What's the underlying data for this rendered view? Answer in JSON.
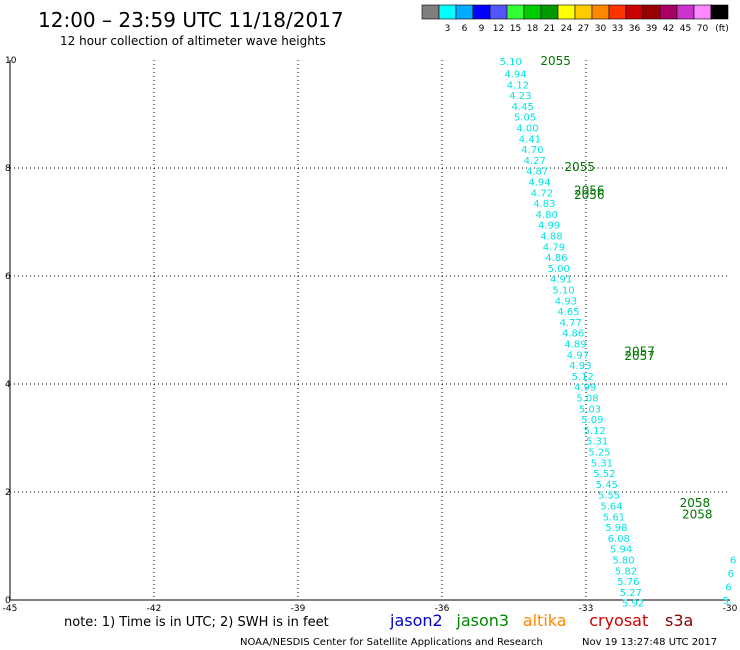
{
  "header": {
    "title": "12:00 – 23:59 UTC 11/18/2017",
    "subtitle": "12 hour collection of altimeter wave heights"
  },
  "legend": {
    "colors": [
      "#7f7f7f",
      "#00ffff",
      "#00aaff",
      "#0000ff",
      "#5555ff",
      "#33ff33",
      "#00cc00",
      "#009900",
      "#ffff00",
      "#ffcc00",
      "#ff8800",
      "#ff3300",
      "#cc0000",
      "#990000",
      "#aa0066",
      "#cc33cc",
      "#ff88ff",
      "#000000"
    ],
    "labels": [
      "3",
      "6",
      "9",
      "12",
      "15",
      "18",
      "21",
      "24",
      "27",
      "30",
      "33",
      "36",
      "39",
      "42",
      "45",
      "70"
    ],
    "unit": "(ft)"
  },
  "footer": {
    "note": "note: 1) Time is in UTC; 2) SWH is in feet",
    "satellites": [
      {
        "name": "jason2",
        "color": "#0000cc"
      },
      {
        "name": "jason3",
        "color": "#008800"
      },
      {
        "name": "altika",
        "color": "#ff8800"
      },
      {
        "name": "cryosat",
        "color": "#cc0000"
      },
      {
        "name": "s3a",
        "color": "#880000"
      }
    ],
    "credit": "NOAA/NESDIS Center for Satellite Applications and Research",
    "timestamp": "Nov 19 13:27:48 UTC 2017"
  },
  "chart_data": {
    "type": "scatter",
    "xlim": [
      -45,
      -30
    ],
    "ylim": [
      0,
      10
    ],
    "x_ticks": [
      "-45",
      "-42",
      "-39",
      "-36",
      "-33",
      "-30"
    ],
    "y_ticks": [
      "0",
      "2",
      "4",
      "6",
      "8",
      "10"
    ],
    "grid": true,
    "series": [
      {
        "name": "jason3",
        "color": "#00e5e5",
        "points": [
          {
            "x": -34.8,
            "y": 9.98,
            "label": "5.10"
          },
          {
            "x": -34.7,
            "y": 9.75,
            "label": "4.94"
          },
          {
            "x": -34.65,
            "y": 9.55,
            "label": "4.12"
          },
          {
            "x": -34.6,
            "y": 9.35,
            "label": "4.23"
          },
          {
            "x": -34.55,
            "y": 9.15,
            "label": "4.45"
          },
          {
            "x": -34.5,
            "y": 8.95,
            "label": "5.05"
          },
          {
            "x": -34.45,
            "y": 8.75,
            "label": "4.00"
          },
          {
            "x": -34.4,
            "y": 8.55,
            "label": "4.41"
          },
          {
            "x": -34.35,
            "y": 8.35,
            "label": "4.70"
          },
          {
            "x": -34.3,
            "y": 8.15,
            "label": "4.27"
          },
          {
            "x": -34.25,
            "y": 7.95,
            "label": "4.87"
          },
          {
            "x": -34.2,
            "y": 7.75,
            "label": "4.94"
          },
          {
            "x": -34.15,
            "y": 7.55,
            "label": "4.72"
          },
          {
            "x": -34.1,
            "y": 7.35,
            "label": "4.83"
          },
          {
            "x": -34.05,
            "y": 7.15,
            "label": "4.80"
          },
          {
            "x": -34.0,
            "y": 6.95,
            "label": "4.99"
          },
          {
            "x": -33.95,
            "y": 6.75,
            "label": "4.88"
          },
          {
            "x": -33.9,
            "y": 6.55,
            "label": "4.79"
          },
          {
            "x": -33.85,
            "y": 6.35,
            "label": "4.86"
          },
          {
            "x": -33.8,
            "y": 6.15,
            "label": "5.00"
          },
          {
            "x": -33.75,
            "y": 5.95,
            "label": "4.91"
          },
          {
            "x": -33.7,
            "y": 5.75,
            "label": "5.10"
          },
          {
            "x": -33.65,
            "y": 5.55,
            "label": "4.93"
          },
          {
            "x": -33.6,
            "y": 5.35,
            "label": "4.65"
          },
          {
            "x": -33.55,
            "y": 5.15,
            "label": "4.77"
          },
          {
            "x": -33.5,
            "y": 4.95,
            "label": "4.86"
          },
          {
            "x": -33.45,
            "y": 4.75,
            "label": "4.89"
          },
          {
            "x": -33.4,
            "y": 4.55,
            "label": "4.97"
          },
          {
            "x": -33.35,
            "y": 4.35,
            "label": "4.93"
          },
          {
            "x": -33.3,
            "y": 4.15,
            "label": "5.12"
          },
          {
            "x": -33.25,
            "y": 3.95,
            "label": "4.99"
          },
          {
            "x": -33.2,
            "y": 3.75,
            "label": "5.08"
          },
          {
            "x": -33.15,
            "y": 3.55,
            "label": "5.03"
          },
          {
            "x": -33.1,
            "y": 3.35,
            "label": "5.09"
          },
          {
            "x": -33.05,
            "y": 3.15,
            "label": "5.12"
          },
          {
            "x": -33.0,
            "y": 2.95,
            "label": "5.31"
          },
          {
            "x": -32.95,
            "y": 2.75,
            "label": "5.25"
          },
          {
            "x": -32.9,
            "y": 2.55,
            "label": "5.31"
          },
          {
            "x": -32.85,
            "y": 2.35,
            "label": "5.52"
          },
          {
            "x": -32.8,
            "y": 2.15,
            "label": "5.45"
          },
          {
            "x": -32.75,
            "y": 1.95,
            "label": "5.55"
          },
          {
            "x": -32.7,
            "y": 1.75,
            "label": "5.64"
          },
          {
            "x": -32.65,
            "y": 1.55,
            "label": "5.61"
          },
          {
            "x": -32.6,
            "y": 1.35,
            "label": "5.98"
          },
          {
            "x": -32.55,
            "y": 1.15,
            "label": "6.08"
          },
          {
            "x": -32.5,
            "y": 0.95,
            "label": "5.94"
          },
          {
            "x": -32.45,
            "y": 0.75,
            "label": "5.80"
          },
          {
            "x": -32.4,
            "y": 0.55,
            "label": "5.82"
          },
          {
            "x": -32.35,
            "y": 0.35,
            "label": "5.76"
          },
          {
            "x": -32.3,
            "y": 0.15,
            "label": "5.27"
          },
          {
            "x": -32.25,
            "y": -0.05,
            "label": "5.92"
          },
          {
            "x": -30.0,
            "y": 0.75,
            "label": "6"
          },
          {
            "x": -30.05,
            "y": 0.5,
            "label": "6"
          },
          {
            "x": -30.1,
            "y": 0.25,
            "label": "6"
          },
          {
            "x": -30.15,
            "y": 0.0,
            "label": "5."
          }
        ]
      },
      {
        "name": "time-labels",
        "color": "#007700",
        "points": [
          {
            "x": -33.95,
            "y": 9.98,
            "label": "2055"
          },
          {
            "x": -33.45,
            "y": 8.02,
            "label": "2055"
          },
          {
            "x": -33.25,
            "y": 7.58,
            "label": "2056"
          },
          {
            "x": -33.25,
            "y": 7.5,
            "label": "2056"
          },
          {
            "x": -32.2,
            "y": 4.6,
            "label": "2057"
          },
          {
            "x": -32.2,
            "y": 4.52,
            "label": "2057"
          },
          {
            "x": -31.05,
            "y": 1.8,
            "label": "2058"
          },
          {
            "x": -31.0,
            "y": 1.58,
            "label": "2058"
          }
        ]
      }
    ]
  }
}
